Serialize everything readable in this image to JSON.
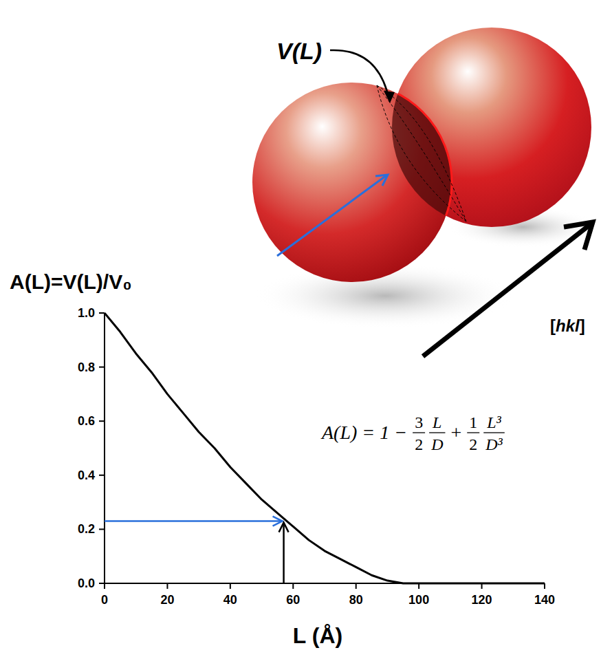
{
  "chart_data": {
    "type": "line",
    "y_label": "A(L)=V(L)/V₀",
    "x_label": "L (Å)",
    "x": [
      0,
      5,
      10,
      15,
      20,
      25,
      30,
      35,
      40,
      45,
      50,
      55,
      60,
      65,
      70,
      75,
      80,
      85,
      90,
      95,
      100,
      110,
      120,
      130,
      140
    ],
    "values": [
      1.0,
      0.93,
      0.85,
      0.78,
      0.7,
      0.63,
      0.56,
      0.5,
      0.43,
      0.37,
      0.31,
      0.26,
      0.21,
      0.16,
      0.12,
      0.09,
      0.06,
      0.03,
      0.01,
      0.0,
      0.0,
      0.0,
      0.0,
      0.0,
      0.0
    ],
    "color": "#000000",
    "xlim": [
      0,
      140
    ],
    "xticks": [
      0,
      20,
      40,
      60,
      80,
      100,
      120,
      140
    ],
    "ylim": [
      0,
      1.0
    ],
    "yticks": [
      {
        "value": 0,
        "label": "0.0"
      },
      {
        "value": 0.2,
        "label": "0.2"
      },
      {
        "value": 0.4,
        "label": "0.4"
      },
      {
        "value": 0.6,
        "label": "0.6"
      },
      {
        "value": 0.8,
        "label": "0.8"
      },
      {
        "value": 1.0,
        "label": "1.0"
      }
    ],
    "grid": false,
    "readout": {
      "x": 57,
      "y": 0.23
    },
    "formula": {
      "lhs": "A(L) = 1 −",
      "c1": [
        "3",
        "2"
      ],
      "t1": [
        "L",
        "D"
      ],
      "op": "+",
      "c2": [
        "1",
        "2"
      ],
      "t2": [
        "L³",
        "D³"
      ]
    },
    "volume_label": "V(L)",
    "direction_label": "[hkl]"
  }
}
